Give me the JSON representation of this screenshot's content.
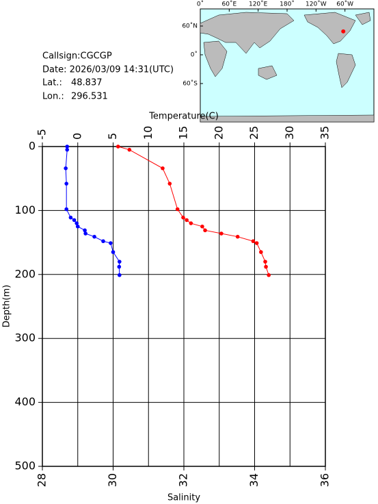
{
  "info": {
    "callsign": "Callsign:CGCGP",
    "date": "Date:  2026/03/09 14:31(UTC)",
    "lat_label": "Lat.:",
    "lat": 48.837,
    "lon_label": "Lon.:",
    "lon": 296.531
  },
  "map": {
    "lon_ticks": [
      {
        "value": 0,
        "label": "0˚"
      },
      {
        "value": 60,
        "label": "60˚E"
      },
      {
        "value": 120,
        "label": "120˚E"
      },
      {
        "value": 180,
        "label": "180˚"
      },
      {
        "value": 240,
        "label": "120˚W"
      },
      {
        "value": 300,
        "label": "60˚W"
      }
    ],
    "lat_ticks": [
      {
        "value": 60,
        "label": "60˚N"
      },
      {
        "value": 0,
        "label": "0˚"
      },
      {
        "value": -60,
        "label": "60˚S"
      }
    ]
  },
  "chart_data": {
    "type": "profile",
    "xlabel": "Temperature(C)",
    "x2label": "Salinity",
    "ylabel": "Depth(m)",
    "xlim": [
      -5,
      35
    ],
    "xticks": [
      -5,
      0,
      5,
      10,
      15,
      20,
      25,
      30,
      35
    ],
    "x2lim": [
      28,
      36
    ],
    "x2ticks": [
      28,
      30,
      32,
      34,
      36
    ],
    "ylim": [
      0,
      500
    ],
    "yticks": [
      0,
      100,
      200,
      300,
      400,
      500
    ],
    "grid": true,
    "depth": [
      0,
      5,
      34,
      58,
      98,
      111,
      115,
      120,
      125,
      131,
      136,
      141,
      148,
      151,
      165,
      180,
      188,
      201
    ],
    "series": [
      {
        "name": "Temperature",
        "color": "#ff0000",
        "axis": "x",
        "values": [
          5.7,
          7.3,
          12.0,
          13.0,
          14.1,
          14.9,
          15.4,
          16.0,
          17.6,
          18.0,
          20.3,
          22.6,
          24.8,
          25.3,
          25.9,
          26.5,
          26.6,
          27.0
        ]
      },
      {
        "name": "Salinity",
        "color": "#0000ff",
        "axis": "x2",
        "values": [
          28.7,
          28.7,
          28.66,
          28.68,
          28.68,
          28.8,
          28.9,
          28.97,
          29.0,
          29.2,
          29.22,
          29.47,
          29.72,
          29.93,
          30.0,
          30.18,
          30.17,
          30.18
        ]
      }
    ]
  }
}
